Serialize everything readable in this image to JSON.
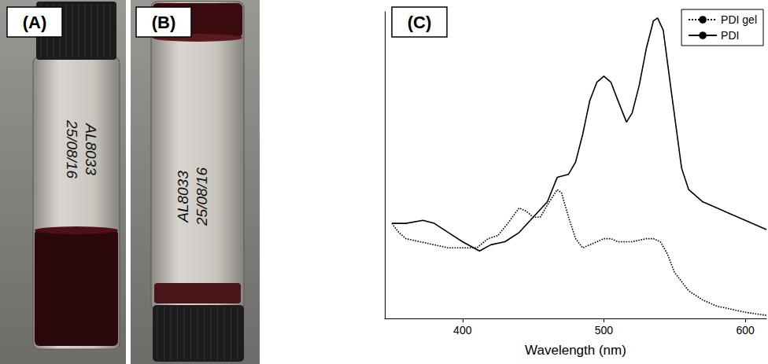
{
  "panels": [
    {
      "letter": "(A)",
      "vial_label": [
        "AL8033",
        "25/08/16"
      ]
    },
    {
      "letter": "(B)",
      "vial_label": [
        "AL8033",
        "25/08/16"
      ]
    }
  ],
  "chart_panel": {
    "letter": "(C)"
  },
  "chart_data": {
    "type": "line",
    "x_label": "Wavelength (nm)",
    "xlim": [
      345,
      615
    ],
    "xticks": [
      400,
      500,
      600
    ],
    "ylim": [
      0,
      1
    ],
    "yticks": [],
    "tick_labels": "x",
    "legend": "upper right",
    "series": [
      {
        "name": "PDI gel",
        "color": "#000000",
        "line_style": "dotted",
        "x": [
          350,
          355,
          360,
          370,
          380,
          390,
          400,
          410,
          418,
          425,
          432,
          440,
          445,
          450,
          455,
          460,
          467,
          470,
          475,
          480,
          485,
          490,
          500,
          505,
          510,
          520,
          530,
          535,
          540,
          545,
          550,
          560,
          570,
          580,
          590,
          600,
          615
        ],
        "values": [
          0.31,
          0.28,
          0.26,
          0.25,
          0.24,
          0.23,
          0.23,
          0.23,
          0.26,
          0.27,
          0.31,
          0.36,
          0.35,
          0.33,
          0.33,
          0.37,
          0.42,
          0.41,
          0.33,
          0.26,
          0.23,
          0.24,
          0.26,
          0.26,
          0.25,
          0.25,
          0.26,
          0.26,
          0.25,
          0.21,
          0.15,
          0.09,
          0.06,
          0.04,
          0.03,
          0.02,
          0.01
        ]
      },
      {
        "name": "PDI",
        "color": "#000000",
        "line_style": "solid",
        "x": [
          350,
          360,
          372,
          380,
          390,
          400,
          412,
          420,
          430,
          440,
          450,
          460,
          467,
          475,
          480,
          485,
          490,
          495,
          500,
          505,
          510,
          516,
          520,
          525,
          530,
          535,
          538,
          542,
          548,
          555,
          560,
          570,
          580,
          590,
          600,
          615
        ],
        "values": [
          0.31,
          0.31,
          0.32,
          0.31,
          0.28,
          0.25,
          0.22,
          0.24,
          0.25,
          0.28,
          0.33,
          0.38,
          0.46,
          0.47,
          0.51,
          0.6,
          0.71,
          0.77,
          0.79,
          0.77,
          0.71,
          0.64,
          0.67,
          0.76,
          0.88,
          0.97,
          0.98,
          0.94,
          0.73,
          0.49,
          0.42,
          0.38,
          0.36,
          0.34,
          0.32,
          0.29
        ]
      }
    ]
  }
}
